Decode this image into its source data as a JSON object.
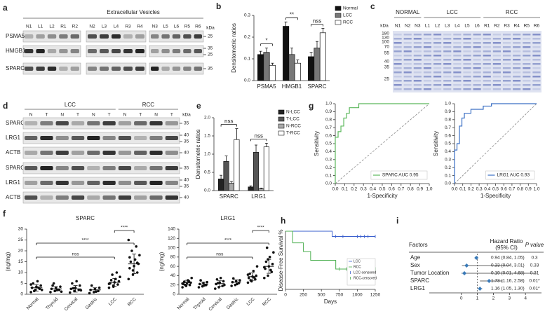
{
  "panel_labels": [
    "a",
    "b",
    "c",
    "d",
    "e",
    "f",
    "g",
    "h",
    "i"
  ],
  "blot_a": {
    "title": "Extracellular Vesicles",
    "lane_groups": [
      [
        "N1",
        "L1",
        "L2",
        "R1",
        "R2"
      ],
      [
        "N2",
        "L3",
        "L4",
        "R3",
        "R4"
      ],
      [
        "N3",
        "L5",
        "L6",
        "R5",
        "R6"
      ]
    ],
    "rows": [
      "PSMA5",
      "HMGB1",
      "SPARC"
    ],
    "unit": "kDa",
    "markers": [
      [
        25
      ],
      [
        35,
        25
      ],
      [
        35
      ]
    ]
  },
  "gel_c": {
    "groups": [
      "NORMAL",
      "LCC",
      "RCC"
    ],
    "lanes": [
      "N1",
      "N2",
      "N3",
      "L1",
      "L2",
      "L3",
      "L4",
      "L5",
      "L6",
      "R1",
      "R2",
      "R3",
      "R4",
      "R5",
      "R6"
    ],
    "unit": "kDa",
    "markers": [
      180,
      130,
      100,
      70,
      55,
      40,
      35,
      25
    ]
  },
  "blot_d": {
    "groups": [
      "LCC",
      "RCC"
    ],
    "lanes": [
      "N",
      "T",
      "N",
      "T",
      "N",
      "T",
      "N",
      "T",
      "N",
      "T"
    ],
    "rows": [
      "SPARC",
      "LRG1",
      "ACTB",
      "SPARC",
      "LRG1",
      "ACTB"
    ],
    "unit": "kDa",
    "markers": [
      [
        35
      ],
      [
        40,
        35
      ],
      [
        40
      ],
      [
        35
      ],
      [
        40,
        35
      ],
      [
        40
      ]
    ]
  },
  "chart_data": [
    {
      "type": "bar",
      "ylabel": "Densitometric ratios",
      "categories": [
        "PSMA5",
        "HMGB1",
        "SPARC"
      ],
      "series": [
        {
          "name": "Normal",
          "color": "#111111",
          "values": [
            0.12,
            0.25,
            0.11
          ],
          "errors": [
            0.015,
            0.02,
            0.02
          ]
        },
        {
          "name": "LCC",
          "color": "#777777",
          "values": [
            0.13,
            0.12,
            0.15
          ],
          "errors": [
            0.02,
            0.03,
            0.03
          ]
        },
        {
          "name": "RCC",
          "color": "#ffffff",
          "values": [
            0.07,
            0.08,
            0.22
          ],
          "errors": [
            0.01,
            0.015,
            0.02
          ]
        }
      ],
      "ylim": [
        0,
        0.3
      ],
      "yticks": [
        {
          "value": 0,
          "label": "0.0"
        },
        0.1,
        0.2,
        0.3
      ],
      "legend": "upper right",
      "annotations": [
        "*",
        "**",
        "nss"
      ]
    },
    {
      "type": "bar",
      "ylabel": "Densitometric ratios",
      "categories": [
        "SPARC",
        "LRG1"
      ],
      "series": [
        {
          "name": "N-LCC",
          "color": "#222222",
          "values": [
            0.32,
            0.1
          ],
          "errors": [
            0.1,
            0.03
          ]
        },
        {
          "name": "T-LCC",
          "color": "#555555",
          "values": [
            0.8,
            1.05
          ],
          "errors": [
            0.15,
            0.2
          ]
        },
        {
          "name": "N-RCC",
          "color": "#aaaaaa",
          "values": [
            0.2,
            0.05
          ],
          "errors": [
            0.05,
            0.02
          ]
        },
        {
          "name": "T-RCC",
          "color": "#ffffff",
          "values": [
            1.4,
            1.2
          ],
          "errors": [
            0.3,
            0.1
          ]
        }
      ],
      "ylim": [
        0,
        2
      ],
      "yticks": [
        {
          "value": 0,
          "label": "0.0"
        },
        0.5,
        {
          "value": 1,
          "label": "1.0"
        },
        1.5,
        {
          "value": 2,
          "label": "2.0"
        }
      ],
      "legend": "upper right",
      "annotations": [
        "nss",
        "nss"
      ]
    },
    {
      "type": "line",
      "xlabel": "1-Specificity",
      "ylabel": "Sensitivity",
      "xlim": [
        0,
        1
      ],
      "ylim": [
        0,
        1
      ],
      "xticks": [
        {
          "value": 0,
          "label": "0.0"
        },
        0.1,
        0.2,
        0.3,
        0.4,
        0.5,
        0.6,
        0.7,
        0.8,
        0.9,
        {
          "value": 1,
          "label": "1.0"
        }
      ],
      "yticks": [
        {
          "value": 0,
          "label": "0.0"
        },
        0.1,
        0.2,
        0.3,
        0.4,
        0.5,
        0.6,
        0.7,
        0.8,
        0.9,
        {
          "value": 1,
          "label": "1.0"
        }
      ],
      "legend": "lower right",
      "series": [
        {
          "name": "SPARC AUC 0.95",
          "color": "#5cb85c",
          "x": [
            0,
            0,
            0.03,
            0.03,
            0.06,
            0.06,
            0.09,
            0.09,
            0.12,
            0.12,
            0.15,
            0.15,
            0.25,
            0.25,
            1
          ],
          "values": [
            0,
            0.58,
            0.58,
            0.65,
            0.65,
            0.72,
            0.72,
            0.82,
            0.82,
            0.88,
            0.88,
            0.95,
            0.95,
            1,
            1
          ]
        }
      ]
    },
    {
      "type": "line",
      "xlabel": "1-Specificity",
      "ylabel": "Sensitivity",
      "xlim": [
        0,
        1
      ],
      "ylim": [
        0,
        1
      ],
      "xticks": [
        {
          "value": 0,
          "label": "0.0"
        },
        0.1,
        0.2,
        0.3,
        0.4,
        0.5,
        0.6,
        0.7,
        0.8,
        0.9,
        {
          "value": 1,
          "label": "1.0"
        }
      ],
      "yticks": [
        {
          "value": 0,
          "label": "0.0"
        },
        0.1,
        0.2,
        0.3,
        0.4,
        0.5,
        0.6,
        0.7,
        0.8,
        0.9,
        {
          "value": 1,
          "label": "1.0"
        }
      ],
      "legend": "lower right",
      "series": [
        {
          "name": "LRG1 AUC 0.93",
          "color": "#3a6fc4",
          "x": [
            0,
            0,
            0.03,
            0.03,
            0.06,
            0.06,
            0.09,
            0.09,
            0.12,
            0.12,
            0.2,
            0.2,
            0.35,
            0.35,
            0.45,
            0.45,
            1
          ],
          "values": [
            0,
            0.42,
            0.42,
            0.5,
            0.5,
            0.72,
            0.72,
            0.82,
            0.82,
            0.88,
            0.88,
            0.93,
            0.93,
            0.97,
            0.97,
            1,
            1
          ]
        }
      ]
    },
    {
      "type": "strip",
      "title": "SPARC",
      "ylabel": "(ng/mg)",
      "categories": [
        "Normal",
        "Thyroid",
        "Cervical",
        "Gastric",
        "LCC",
        "RCC"
      ],
      "points": [
        [
          1,
          2,
          2.5,
          3,
          3.5,
          4,
          5,
          6,
          2,
          1.5,
          3,
          4.5
        ],
        [
          1,
          1.5,
          2,
          2.5,
          3,
          3.5,
          4,
          2,
          1.2,
          5
        ],
        [
          0.8,
          1.5,
          2,
          2.5,
          3,
          4,
          5,
          6,
          1.8,
          2.8
        ],
        [
          0.5,
          1,
          1.5,
          2,
          2.5,
          3,
          4,
          1.2
        ],
        [
          3,
          4,
          4.5,
          5,
          5.5,
          6,
          6.5,
          7,
          8,
          9,
          10,
          4.8,
          3.5
        ],
        [
          7,
          9,
          10,
          12,
          13,
          14,
          15,
          16,
          18,
          20,
          22,
          25,
          11,
          14.5,
          17
        ]
      ],
      "means": [
        3,
        2.5,
        2.5,
        2,
        5.5,
        14
      ],
      "sds": [
        1.5,
        1,
        1.5,
        1,
        1.8,
        4.5
      ],
      "ylim": [
        0,
        30
      ],
      "yticks": [
        0,
        5,
        10,
        15,
        20,
        25,
        30
      ],
      "annotations": [
        "****",
        "****",
        "nss"
      ]
    },
    {
      "type": "strip",
      "title": "LRG1",
      "ylabel": "(ng/mg)",
      "categories": [
        "Normal",
        "Thyroid",
        "Cervical",
        "Gastric",
        "LCC",
        "RCC"
      ],
      "points": [
        [
          15,
          18,
          20,
          22,
          24,
          25,
          27,
          30,
          35,
          20,
          28,
          23
        ],
        [
          15,
          17,
          20,
          22,
          24,
          26,
          30,
          19
        ],
        [
          12,
          15,
          18,
          22,
          25,
          28,
          32,
          35,
          20,
          24
        ],
        [
          18,
          20,
          24,
          26,
          28,
          30,
          34,
          22
        ],
        [
          25,
          28,
          32,
          35,
          38,
          40,
          44,
          50,
          60,
          30,
          36,
          42
        ],
        [
          35,
          40,
          48,
          55,
          60,
          65,
          70,
          80,
          90,
          100,
          52,
          58,
          75
        ]
      ],
      "means": [
        25,
        22,
        23,
        26,
        38,
        60
      ],
      "sds": [
        5,
        4,
        6,
        5,
        8,
        15
      ],
      "ylim": [
        0,
        140
      ],
      "yticks": [
        0,
        20,
        40,
        60,
        80,
        100,
        120,
        140
      ],
      "annotations": [
        "****",
        "****",
        "nss"
      ]
    },
    {
      "type": "survival",
      "xlabel": "Days",
      "ylabel": "Disease-Free Survival %",
      "xlim": [
        0,
        1250
      ],
      "ylim": [
        0,
        100
      ],
      "xticks": [
        0,
        250,
        500,
        750,
        1000,
        1250
      ],
      "legend": "lower right",
      "series": [
        {
          "name": "LCC",
          "color": "#3a5fcd",
          "x": [
            0,
            650,
            650,
            1250
          ],
          "values": [
            100,
            100,
            91,
            91
          ],
          "censored_name": "LCC-censored",
          "censored": {
            "x": [
              700,
              800,
              1000,
              1050,
              1100,
              1150,
              1250
            ],
            "values": [
              91,
              91,
              91,
              91,
              91,
              91,
              91
            ]
          }
        },
        {
          "name": "RCC",
          "color": "#4caf50",
          "x": [
            0,
            100,
            100,
            250,
            250,
            350,
            350,
            700,
            700,
            1250
          ],
          "values": [
            100,
            100,
            80,
            80,
            65,
            65,
            50,
            50,
            35,
            35
          ],
          "censored_name": "RCC-censored",
          "censored": {
            "x": [
              750,
              850,
              900,
              1000,
              1100,
              1250
            ],
            "values": [
              35,
              35,
              35,
              35,
              35,
              35
            ]
          }
        }
      ]
    },
    {
      "type": "forest",
      "headers": [
        "Factors",
        "Hazard Ratio",
        "(95% CI)",
        "P value"
      ],
      "categories": [
        "Age",
        "Sex",
        "Tumor Location",
        "SPARC",
        "LRG1"
      ],
      "values": [
        0.94,
        0.33,
        0.19,
        1.73,
        1.16
      ],
      "ci_low": [
        0.84,
        0.04,
        0.01,
        1.16,
        1.05
      ],
      "ci_high": [
        1.05,
        3.01,
        4.68,
        2.58,
        1.3
      ],
      "value_labels": [
        "0.94 (0.84, 1.05)",
        "0.33 (0.04, 3.01)",
        "0.19 (0.01, 4.68)",
        "1.73 (1.16, 2.58)",
        "1.16 (1.05, 1.30)"
      ],
      "p_values": [
        "0.3",
        "0.33",
        "0.31",
        "0.01*",
        "0.01*"
      ],
      "color": "#3a7ab8",
      "reference": 1,
      "xlim": [
        -2,
        5
      ],
      "xticks": [
        0,
        1,
        2,
        3,
        4
      ]
    }
  ]
}
